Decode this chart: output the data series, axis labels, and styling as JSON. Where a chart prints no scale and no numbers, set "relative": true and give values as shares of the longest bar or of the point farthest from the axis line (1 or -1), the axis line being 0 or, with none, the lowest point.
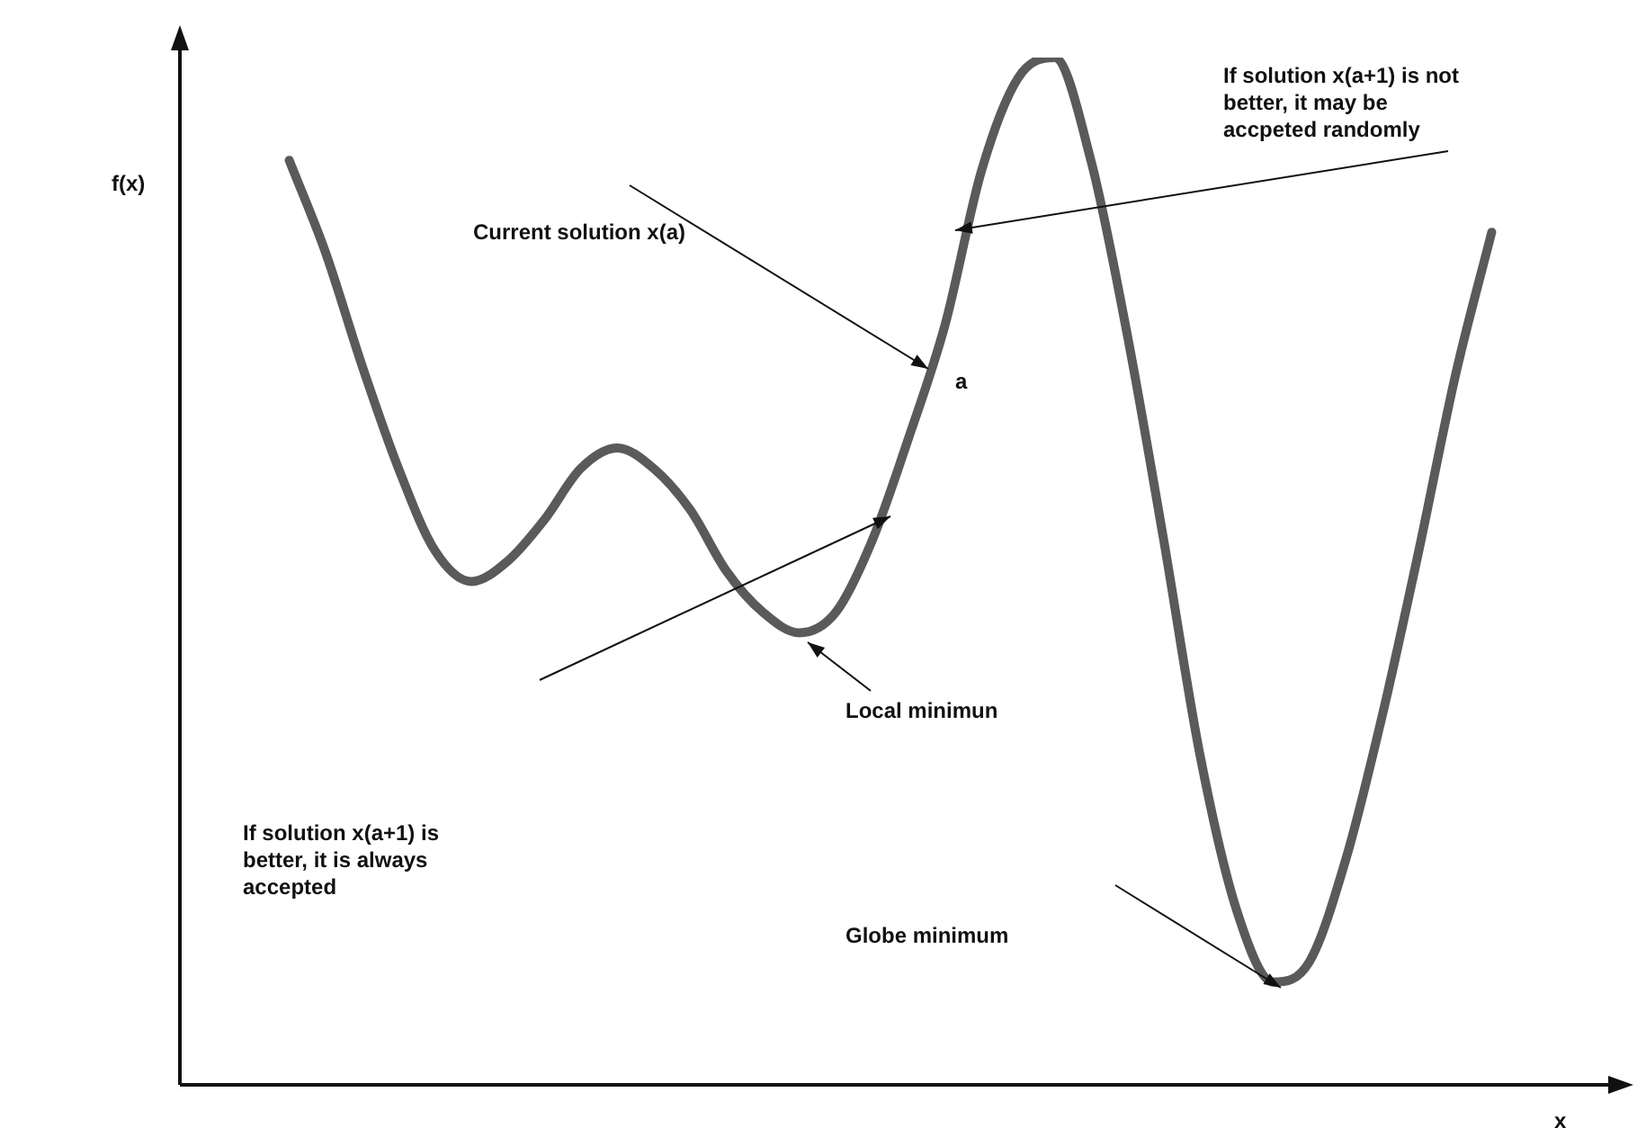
{
  "chart_data": {
    "type": "line",
    "relative": true,
    "xlabel": "x",
    "ylabel": "f(x)",
    "tick_labels": false,
    "marker": "none",
    "color": "#5a5a5a",
    "categories": [
      null,
      null,
      null,
      null,
      null,
      null,
      null,
      null,
      null,
      null,
      null,
      null,
      null,
      null,
      null,
      null,
      null,
      null,
      null,
      null,
      null,
      null,
      null,
      null,
      null,
      null,
      null,
      null,
      null,
      null,
      null,
      null,
      null,
      null,
      null,
      null,
      null,
      null,
      null,
      null
    ],
    "values": [
      null,
      null,
      null,
      0.9,
      0.81,
      0.7,
      0.6,
      0.52,
      0.49,
      0.51,
      0.55,
      0.6,
      0.62,
      0.6,
      0.56,
      0.5,
      0.46,
      0.44,
      0.46,
      0.53,
      0.63,
      0.74,
      0.89,
      0.98,
      1,
      0.9,
      0.73,
      0.53,
      0.32,
      0.17,
      0.1,
      0.12,
      0.22,
      0.36,
      0.52,
      0.69,
      0.83,
      null,
      null,
      null
    ],
    "annotations": [
      "Current solution x(a)",
      "a",
      "If solution x(a+1) is not better, it may be accpeted randomly",
      "Local minimun",
      "If solution x(a+1) is better, it is always accepted",
      "Globe minimum"
    ]
  }
}
